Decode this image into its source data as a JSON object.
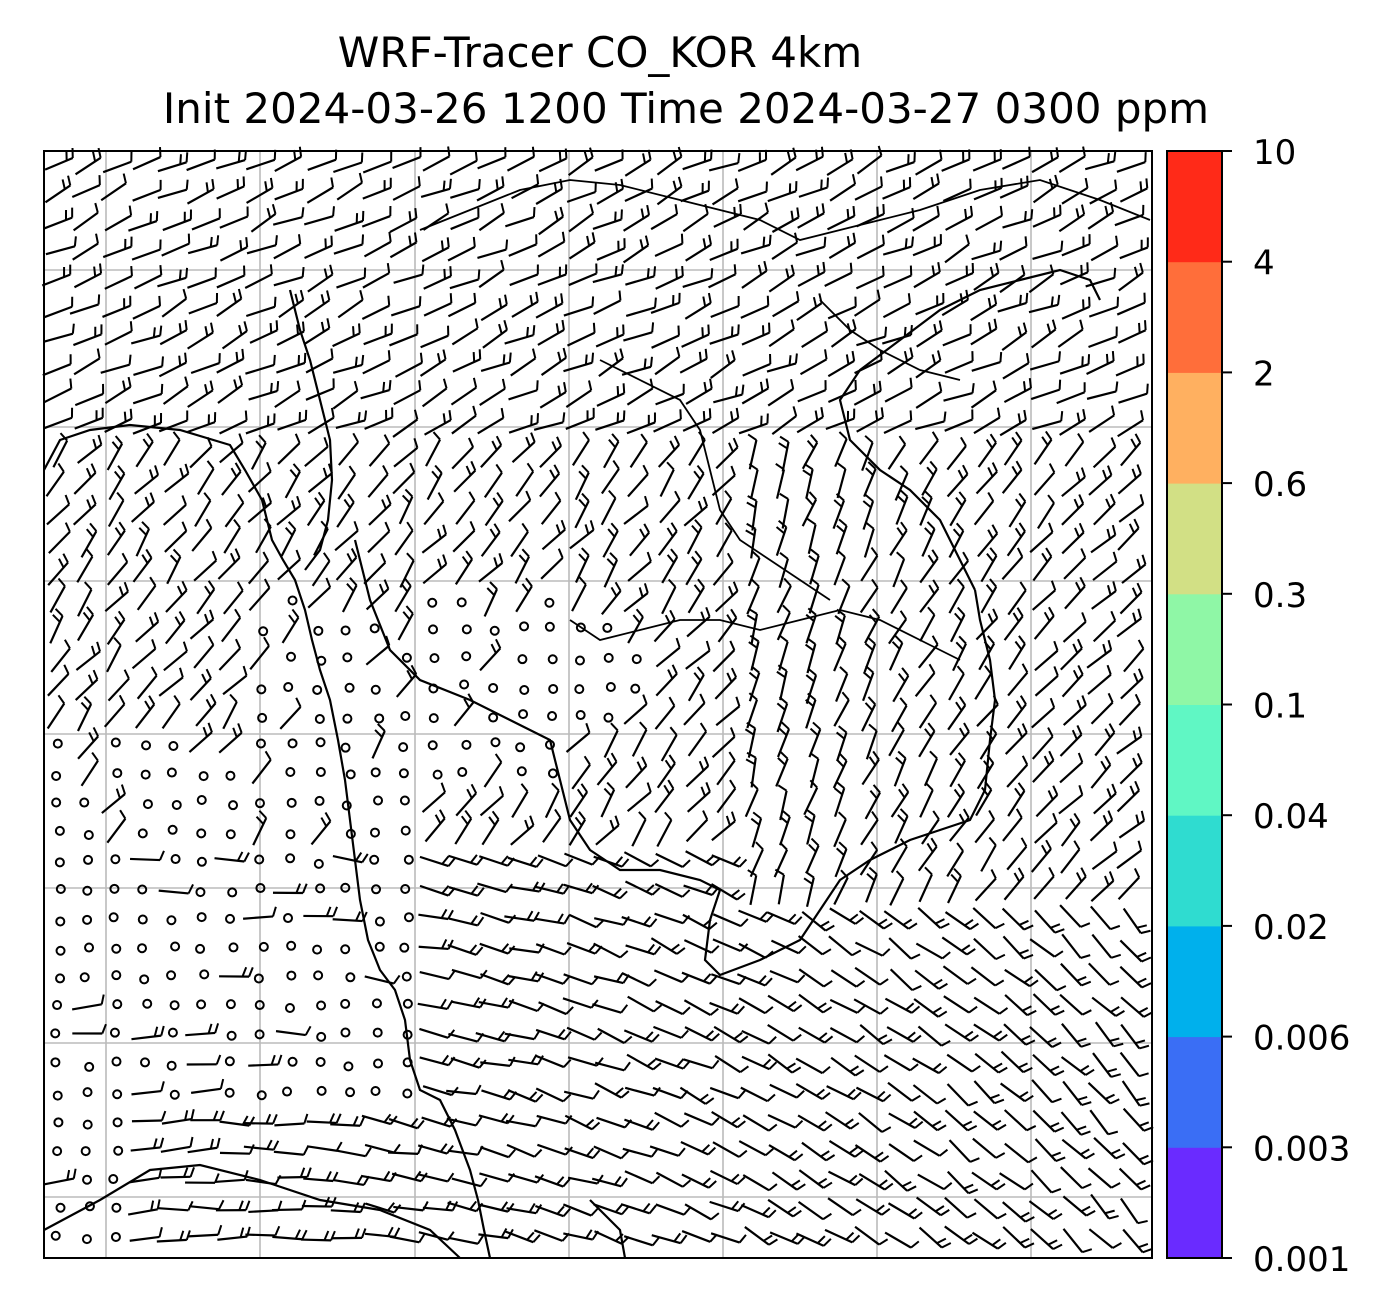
{
  "title_line1": "WRF-Tracer CO_KOR 4km",
  "title_line2": "Init 2024-03-26 1200 Time 2024-03-27 0300 ppm",
  "colorbar": {
    "ticks": [
      "0.001",
      "0.003",
      "0.006",
      "0.02",
      "0.04",
      "0.1",
      "0.3",
      "0.6",
      "2",
      "4",
      "10"
    ],
    "colors": [
      "#6a2bff",
      "#3a6ef5",
      "#00b0ec",
      "#2fdcd0",
      "#60f7c4",
      "#8ff7a6",
      "#d2e085",
      "#ffb060",
      "#ff6e3a",
      "#ff2a18"
    ]
  },
  "map": {
    "grid_color": "#bbbbbb",
    "line_color": "#000000",
    "symbols": "wind barbs and calm-wind circles",
    "grid_lines": "on"
  }
}
